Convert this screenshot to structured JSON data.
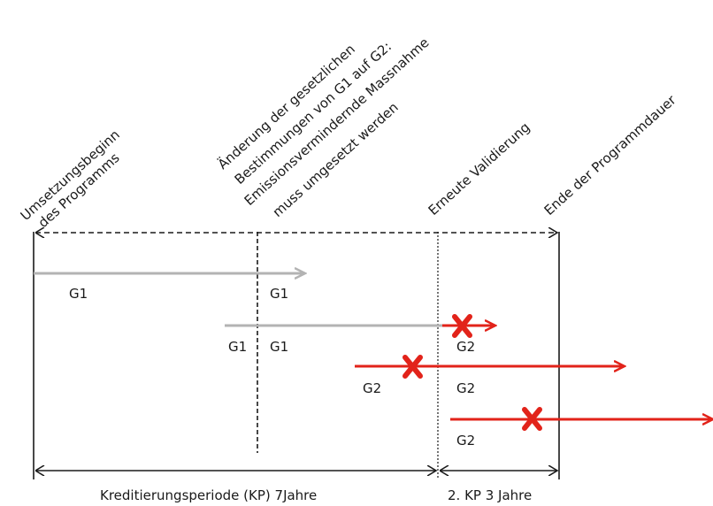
{
  "milestones": {
    "start_line1": "Umsetzungsbeginn",
    "start_line2": "des Programms",
    "change_line1": "Änderung der gesetzlichen",
    "change_line2": "Bestimmungen von G1 auf G2:",
    "change_line3": "Emissionsvermindernde Massnahme",
    "change_line4": "muss umgesetzt werden",
    "revalidation": "Erneute Validierung",
    "end": "Ende der Programmdauer"
  },
  "arrow_labels": {
    "a1_left": "G1",
    "a1_right": "G1",
    "a2_left": "G1",
    "a2_right": "G1",
    "a3_right": "G2",
    "a4_left": "G2",
    "a4_right": "G2",
    "a5_right": "G2"
  },
  "periods": {
    "first": "Kreditierungsperiode (KP) 7Jahre",
    "second": "2. KP 3 Jahre"
  },
  "colors": {
    "g1_arrow": "#b3b3b3",
    "g2_arrow": "#e2231a",
    "cross": "#e2231a",
    "lines": "#1a1a1a"
  }
}
